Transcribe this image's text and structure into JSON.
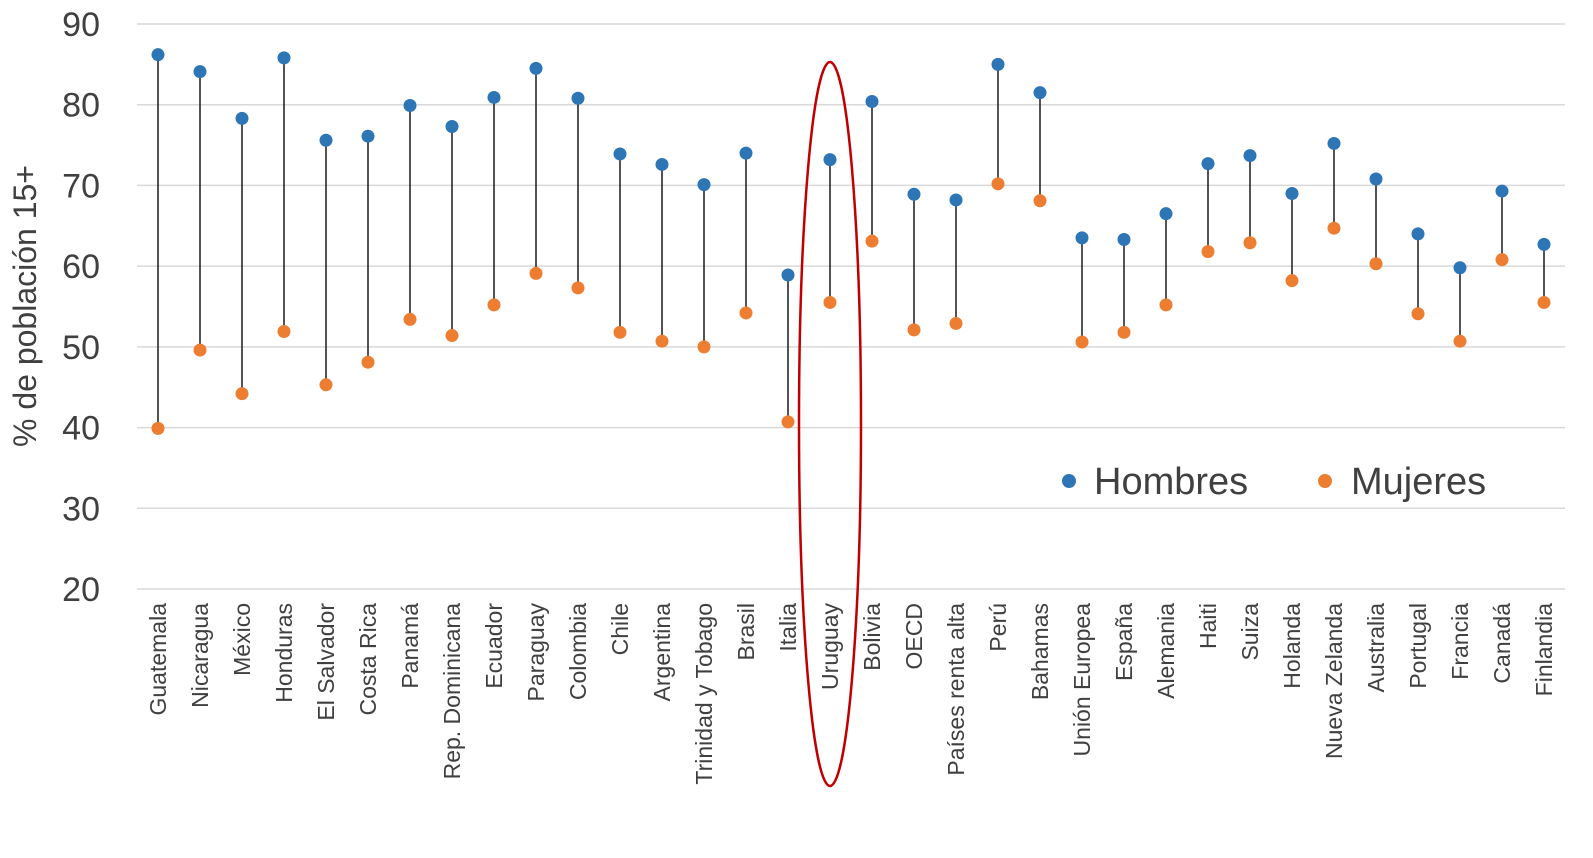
{
  "chart_data": {
    "type": "dot-range",
    "ylabel": "% de población 15+",
    "ylim": [
      20,
      90
    ],
    "yticks": [
      20,
      30,
      40,
      50,
      60,
      70,
      80,
      90
    ],
    "grid": true,
    "legend_position": "bottom-right",
    "categories": [
      "Guatemala",
      "Nicaragua",
      "México",
      "Honduras",
      "El Salvador",
      "Costa Rica",
      "Panamá",
      "Rep. Dominicana",
      "Ecuador",
      "Paraguay",
      "Colombia",
      "Chile",
      "Argentina",
      "Trinidad y Tobago",
      "Brasil",
      "Italia",
      "Uruguay",
      "Bolivia",
      "OECD",
      "Países renta alta",
      "Perú",
      "Bahamas",
      "Unión Europea",
      "España",
      "Alemania",
      "Haiti",
      "Suiza",
      "Holanda",
      "Nueva Zelanda",
      "Australia",
      "Portugal",
      "Francia",
      "Canadá",
      "Finlandia"
    ],
    "series": [
      {
        "name": "Hombres",
        "color": "#2E75B6",
        "values": [
          86.2,
          84.1,
          78.3,
          85.8,
          75.6,
          76.1,
          79.9,
          77.3,
          80.9,
          84.5,
          80.8,
          73.9,
          72.6,
          70.1,
          74.0,
          58.9,
          73.2,
          80.4,
          68.9,
          68.2,
          85.0,
          81.5,
          63.5,
          63.3,
          66.5,
          72.7,
          73.7,
          69.0,
          75.2,
          70.8,
          64.0,
          59.8,
          69.3,
          62.7
        ]
      },
      {
        "name": "Mujeres",
        "color": "#ED7D31",
        "values": [
          39.9,
          49.6,
          44.2,
          51.9,
          45.3,
          48.1,
          53.4,
          51.4,
          55.2,
          59.1,
          57.3,
          51.8,
          50.7,
          50.0,
          54.2,
          40.7,
          55.5,
          63.1,
          52.1,
          52.9,
          70.2,
          68.1,
          50.6,
          51.8,
          55.2,
          61.8,
          62.9,
          58.2,
          64.7,
          60.3,
          54.1,
          50.7,
          60.8,
          55.5
        ]
      }
    ],
    "highlight": {
      "category": "Uruguay",
      "shape": "ellipse",
      "color": "#C00000"
    }
  }
}
